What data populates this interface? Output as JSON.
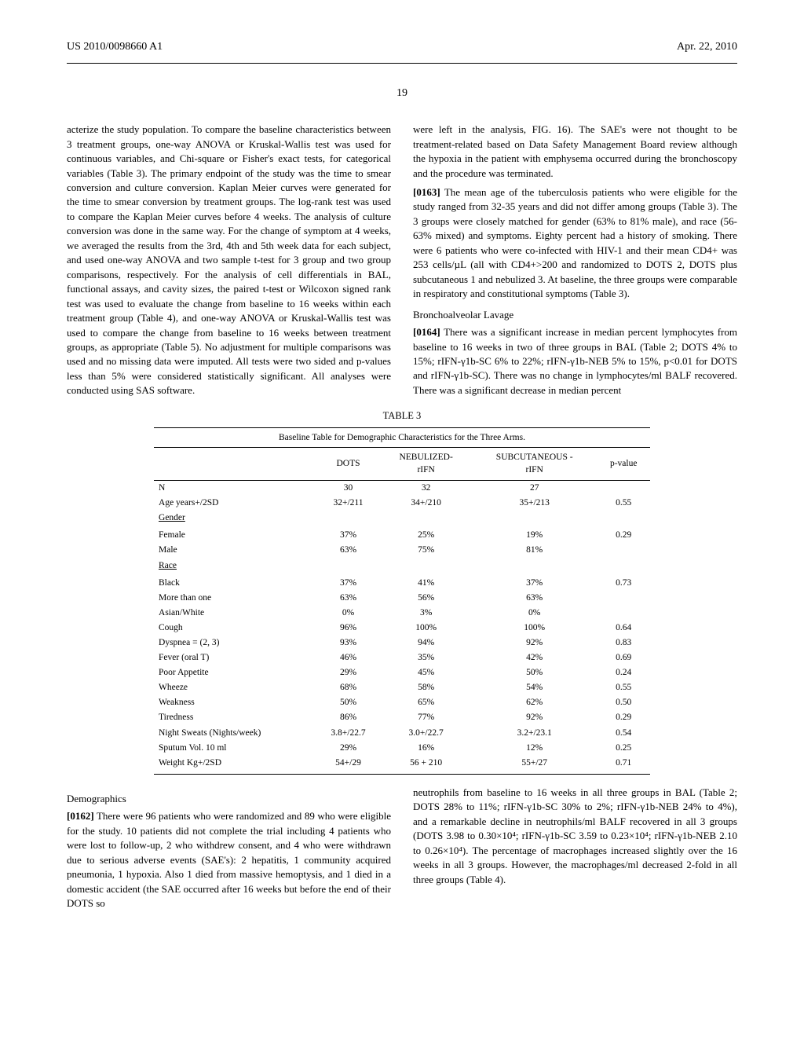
{
  "header": {
    "left": "US 2010/0098660 A1",
    "right": "Apr. 22, 2010"
  },
  "page_number": "19",
  "col_left": {
    "p1": "acterize the study population. To compare the baseline characteristics between 3 treatment groups, one-way ANOVA or Kruskal-Wallis test was used for continuous variables, and Chi-square or Fisher's exact tests, for categorical variables (Table 3). The primary endpoint of the study was the time to smear conversion and culture conversion. Kaplan Meier curves were generated for the time to smear conversion by treatment groups. The log-rank test was used to compare the Kaplan Meier curves before 4 weeks. The analysis of culture conversion was done in the same way. For the change of symptom at 4 weeks, we averaged the results from the 3rd, 4th and 5th week data for each subject, and used one-way ANOVA and two sample t-test for 3 group and two group comparisons, respectively. For the analysis of cell differentials in BAL, functional assays, and cavity sizes, the paired t-test or Wilcoxon signed rank test was used to evaluate the change from baseline to 16 weeks within each treatment group (Table 4), and one-way ANOVA or Kruskal-Wallis test was used to compare the change from baseline to 16 weeks between treatment groups, as appropriate (Table 5). No adjustment for multiple comparisons was used and no missing data were imputed. All tests were two sided and p-values less than 5% were considered statistically significant. All analyses were conducted using SAS software."
  },
  "col_right": {
    "p1": "were left in the analysis, FIG. 16). The SAE's were not thought to be treatment-related based on Data Safety Management Board review although the hypoxia in the patient with emphysema occurred during the bronchoscopy and the procedure was terminated.",
    "p2_label": "[0163]",
    "p2": "   The mean age of the tuberculosis patients who were eligible for the study ranged from 32-35 years and did not differ among groups (Table 3). The 3 groups were closely matched for gender (63% to 81% male), and race (56-63% mixed) and symptoms. Eighty percent had a history of smoking. There were 6 patients who were co-infected with HIV-1 and their mean CD4+ was 253 cells/µL (all with CD4+>200 and randomized to DOTS 2, DOTS plus subcutaneous 1 and nebulized 3. At baseline, the three groups were comparable in respiratory and constitutional symptoms (Table 3).",
    "s1_title": "Bronchoalveolar Lavage",
    "p3_label": "[0164]",
    "p3": "   There was a significant increase in median percent lymphocytes from baseline to 16 weeks in two of three groups in BAL (Table 2; DOTS 4% to 15%; rIFN-γ1b-SC 6% to 22%; rIFN-γ1b-NEB 5% to 15%, p<0.01 for DOTS and rIFN-γ1b-SC). There was no change in lymphocytes/ml BALF recovered. There was a significant decrease in median percent"
  },
  "table3": {
    "label": "TABLE 3",
    "caption": "Baseline Table for Demographic Characteristics for the Three Arms.",
    "headers": [
      "",
      "DOTS",
      "NEBULIZED-rIFN-c",
      "SUBCUTANEOUS -rIFN-c",
      "p-value"
    ],
    "rows": [
      [
        "N",
        "30",
        "32",
        "27",
        ""
      ],
      [
        "Age years+/2SD",
        "32+/211",
        "34+/210",
        "35+/213",
        "0.55"
      ],
      [
        "_Gender",
        "",
        "",
        "",
        ""
      ],
      [
        "",
        "",
        "",
        "",
        ""
      ],
      [
        "Female",
        "37%",
        "25%",
        "19%",
        "0.29"
      ],
      [
        "Male",
        "63%",
        "75%",
        "81%",
        ""
      ],
      [
        "_Race",
        "",
        "",
        "",
        ""
      ],
      [
        "",
        "",
        "",
        "",
        ""
      ],
      [
        "Black",
        "37%",
        "41%",
        "37%",
        "0.73"
      ],
      [
        "More than one",
        "63%",
        "56%",
        "63%",
        ""
      ],
      [
        "Asian/White",
        "0%",
        "3%",
        "0%",
        ""
      ],
      [
        "Cough",
        "96%",
        "100%",
        "100%",
        "0.64"
      ],
      [
        "Dyspnea = (2, 3)",
        "93%",
        "94%",
        "92%",
        "0.83"
      ],
      [
        "Fever (oral T)",
        "46%",
        "35%",
        "42%",
        "0.69"
      ],
      [
        "Poor Appetite",
        "29%",
        "45%",
        "50%",
        "0.24"
      ],
      [
        "Wheeze",
        "68%",
        "58%",
        "54%",
        "0.55"
      ],
      [
        "Weakness",
        "50%",
        "65%",
        "62%",
        "0.50"
      ],
      [
        "Tiredness",
        "86%",
        "77%",
        "92%",
        "0.29"
      ],
      [
        "Night Sweats (Nights/week)",
        "3.8+/22.7",
        "3.0+/22.7",
        "3.2+/23.1",
        "0.54"
      ],
      [
        "Sputum Vol. 10 ml",
        "29%",
        "16%",
        "12%",
        "0.25"
      ],
      [
        "Weight Kg+/2SD",
        "54+/29",
        "56 + 210",
        "55+/27",
        "0.71"
      ]
    ]
  },
  "bottom_left": {
    "s_title": "Demographics",
    "p_label": "[0162]",
    "p": "   There were 96 patients who were randomized and 89 who were eligible for the study. 10 patients did not complete the trial including 4 patients who were lost to follow-up, 2 who withdrew consent, and 4 who were withdrawn due to serious adverse events (SAE's): 2 hepatitis, 1 community acquired pneumonia, 1 hypoxia. Also 1 died from massive hemoptysis, and 1 died in a domestic accident (the SAE occurred after 16 weeks but before the end of their DOTS so"
  },
  "bottom_right": {
    "p": "neutrophils from baseline to 16 weeks in all three groups in BAL (Table 2; DOTS 28% to 11%; rIFN-γ1b-SC 30% to 2%; rIFN-γ1b-NEB 24% to 4%), and a remarkable decline in neutrophils/ml BALF recovered in all 3 groups (DOTS 3.98 to 0.30×10⁴; rIFN-γ1b-SC 3.59 to 0.23×10⁴; rIFN-γ1b-NEB 2.10 to 0.26×10⁴). The percentage of macrophages increased slightly over the 16 weeks in all 3 groups. However, the macrophages/ml decreased 2-fold in all three groups (Table 4)."
  }
}
